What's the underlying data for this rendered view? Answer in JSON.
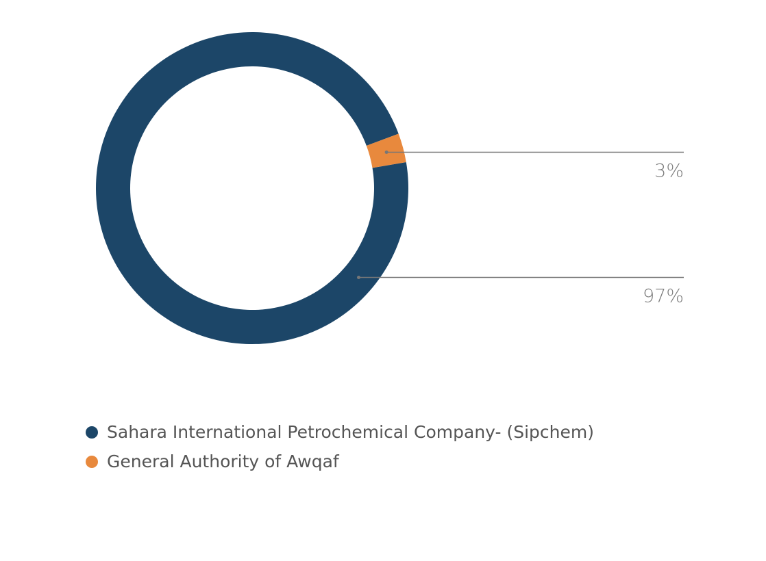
{
  "chart_data": {
    "type": "pie",
    "variant": "donut",
    "title": "",
    "categories": [
      "Sahara International Petrochemical Company- (Sipchem)",
      "General Authority of Awqaf"
    ],
    "values": [
      97,
      3
    ],
    "labels": [
      "97%",
      "3%"
    ],
    "colors": [
      "#1c4668",
      "#e8893d"
    ],
    "legend": {
      "placement": "bottom-left",
      "items": [
        {
          "label": "Sahara International Petrochemical Company- (Sipchem)",
          "color": "#1c4668"
        },
        {
          "label": "General Authority of Awqaf",
          "color": "#e8893d"
        }
      ]
    }
  }
}
